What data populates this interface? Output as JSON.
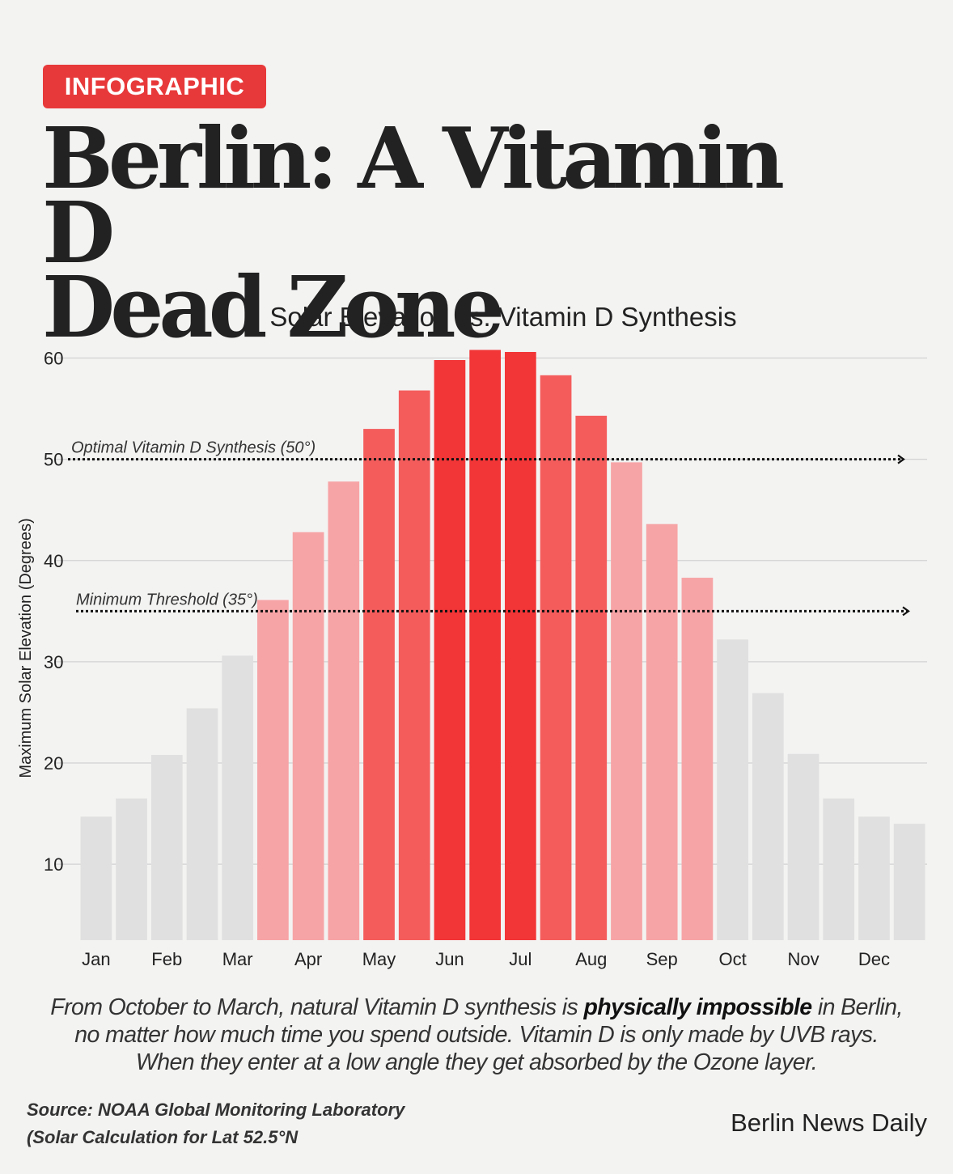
{
  "badge": "INFOGRAPHIC",
  "headline": {
    "line1": "Berlin: A Vitamin D",
    "line2": "Dead Zone"
  },
  "chart_data": {
    "type": "bar",
    "title": "Solar Elevation vs. Vitamin D Synthesis",
    "xlabel": "",
    "ylabel": "Maximum Solar Elevation (Degrees)",
    "ylim": [
      2.5,
      61
    ],
    "yticks": [
      10,
      20,
      30,
      40,
      50,
      60
    ],
    "grid": true,
    "month_labels": [
      "Jan",
      "Feb",
      "Mar",
      "Apr",
      "May",
      "Jun",
      "Jul",
      "Aug",
      "Sep",
      "Oct",
      "Nov",
      "Dec"
    ],
    "values": [
      14.7,
      16.5,
      20.8,
      25.4,
      30.6,
      36.1,
      42.8,
      47.8,
      53.0,
      56.8,
      59.8,
      60.8,
      60.6,
      58.3,
      54.3,
      49.7,
      43.6,
      38.3,
      32.2,
      26.9,
      20.9,
      16.5,
      14.7,
      14.0
    ],
    "colors": [
      "#e0e0e0",
      "#e0e0e0",
      "#e0e0e0",
      "#e0e0e0",
      "#e0e0e0",
      "#f7a4a6",
      "#f7a4a6",
      "#f7a4a6",
      "#f45c5c",
      "#f45c5c",
      "#f23537",
      "#f23537",
      "#f23537",
      "#f45c5c",
      "#f45c5c",
      "#f7a4a6",
      "#f7a4a6",
      "#f7a4a6",
      "#e0e0e0",
      "#e0e0e0",
      "#e0e0e0",
      "#e0e0e0",
      "#e0e0e0",
      "#e0e0e0"
    ],
    "reference_lines": [
      {
        "value": 50,
        "label": "Optimal Vitamin D Synthesis (50°)"
      },
      {
        "value": 35,
        "label": "Minimum Threshold (35°)"
      }
    ]
  },
  "caption": {
    "line1_a": "From October to March, natural Vitamin D synthesis is ",
    "line1_bold": "physically impossible",
    "line1_b": " in Berlin,",
    "line2": "no matter how much time you spend outside. Vitamin D is only made by UVB rays.",
    "line3": "When they enter at a low angle they get absorbed by the Ozone layer."
  },
  "source": {
    "line1": "Source: NOAA Global Monitoring Laboratory",
    "line2": "(Solar Calculation for Lat 52.5°N"
  },
  "publisher": "Berlin News Daily"
}
